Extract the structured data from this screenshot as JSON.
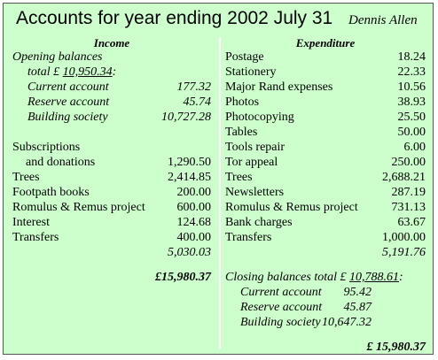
{
  "title": "Accounts for year ending 2002 July 31",
  "author": "Dennis Allen",
  "income": {
    "heading": "Income",
    "opening_label": "Opening balances",
    "opening_total_prefix": "total £ ",
    "opening_total": "10,950.34",
    "opening_total_suffix": ":",
    "opening_items": [
      {
        "label": "Current account",
        "value": "177.32"
      },
      {
        "label": "Reserve account",
        "value": "45.74"
      },
      {
        "label": "Building society",
        "value": "10,727.28"
      }
    ],
    "subscriptions_label": "Subscriptions",
    "donations_label": "and donations",
    "donations_value": "1,290.50",
    "items": [
      {
        "label": "Trees",
        "value": "2,414.85"
      },
      {
        "label": "Footpath books",
        "value": "200.00"
      },
      {
        "label": "Romulus & Remus project",
        "value": "600.00"
      },
      {
        "label": "Interest",
        "value": "124.68"
      },
      {
        "label": "Transfers",
        "value": "400.00"
      }
    ],
    "subtotal": "5,030.03",
    "grand_total": "£15,980.37"
  },
  "expenditure": {
    "heading": "Expenditure",
    "items": [
      {
        "label": "Postage",
        "value": "18.24"
      },
      {
        "label": "Stationery",
        "value": "22.33"
      },
      {
        "label": "Major Rand expenses",
        "value": "10.56"
      },
      {
        "label": "Photos",
        "value": "38.93"
      },
      {
        "label": "Photocopying",
        "value": "25.50"
      },
      {
        "label": "Tables",
        "value": "50.00"
      },
      {
        "label": "Tools repair",
        "value": "6.00"
      },
      {
        "label": "Tor appeal",
        "value": "250.00"
      },
      {
        "label": "Trees",
        "value": "2,688.21"
      },
      {
        "label": "Newsletters",
        "value": "287.19"
      },
      {
        "label": "Romulus & Remus project",
        "value": "731.13"
      },
      {
        "label": "Bank charges",
        "value": "63.67"
      },
      {
        "label": "Transfers",
        "value": "1,000.00"
      }
    ],
    "subtotal": "5,191.76",
    "closing_prefix": "Closing balances total £ ",
    "closing_total": "10,788.61",
    "closing_suffix": ":",
    "closing_items": [
      {
        "label": "Current account",
        "value": "95.42"
      },
      {
        "label": "Reserve account",
        "value": "45.87"
      },
      {
        "label": "Building society",
        "value": "10,647.32"
      }
    ],
    "grand_total": "£ 15,980.37"
  }
}
